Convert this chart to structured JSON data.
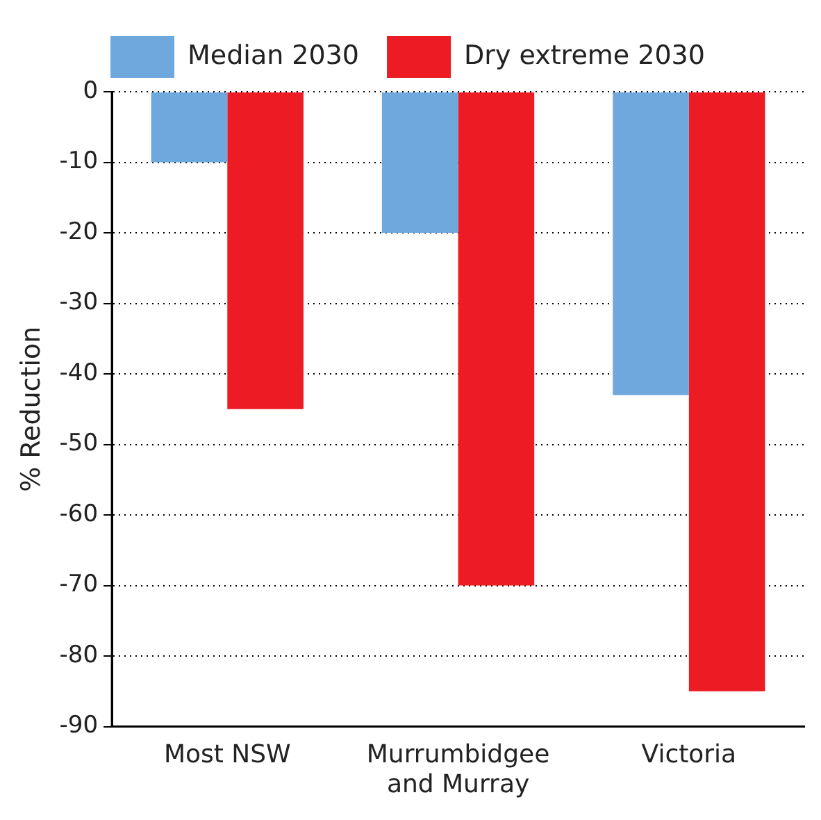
{
  "chart_data": {
    "type": "bar",
    "ylabel": "% Reduction",
    "categories": [
      "Most NSW",
      "Murrumbidgee and Murray",
      "Victoria"
    ],
    "series": [
      {
        "name": "Median 2030",
        "color": "#6fa8dc",
        "values": [
          -10,
          -20,
          -43
        ]
      },
      {
        "name": "Dry extreme 2030",
        "color": "#ed1c24",
        "values": [
          -45,
          -70,
          -85
        ]
      }
    ],
    "ylim": [
      -90,
      0
    ],
    "yticks": [
      -90,
      -80,
      -70,
      -60,
      -50,
      -40,
      -30,
      -20,
      -10,
      0
    ],
    "grid": "y",
    "legend": "top"
  }
}
